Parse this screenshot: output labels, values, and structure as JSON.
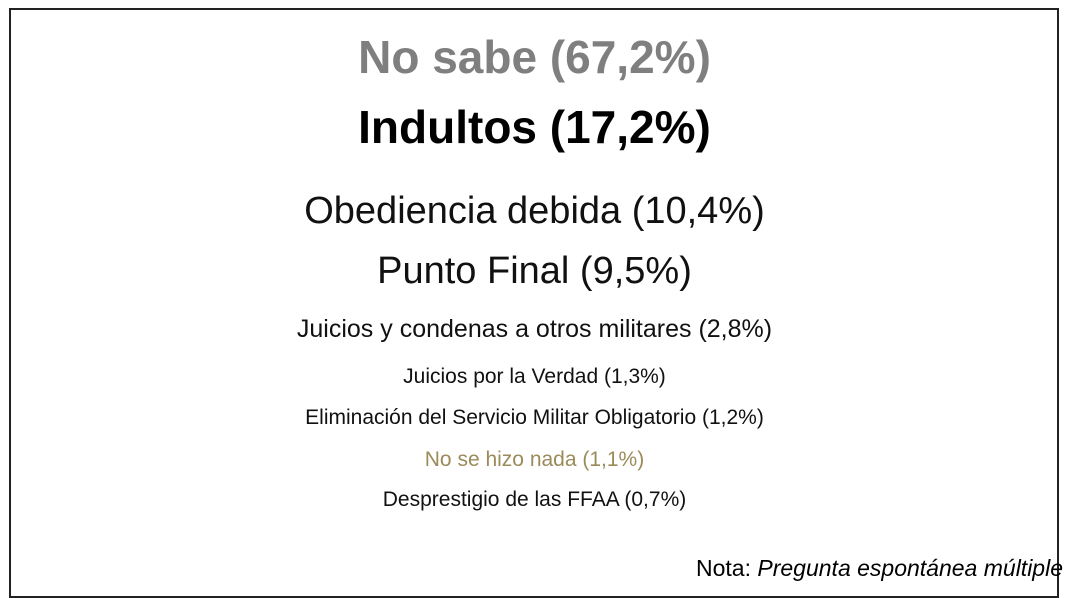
{
  "items": [
    "No sabe (67,2%)",
    "Indultos (17,2%)",
    "Obediencia debida (10,4%)",
    "Punto Final (9,5%)",
    "Juicios y condenas a otros militares (2,8%)",
    "Juicios por la Verdad (1,3%)",
    "Eliminación del Servicio Militar Obligatorio (1,2%)",
    "No se hizo nada (1,1%)",
    "Desprestigio de las FFAA (0,7%)"
  ],
  "note": {
    "label": "Nota:",
    "text": "Pregunta espontánea múltiple"
  }
}
